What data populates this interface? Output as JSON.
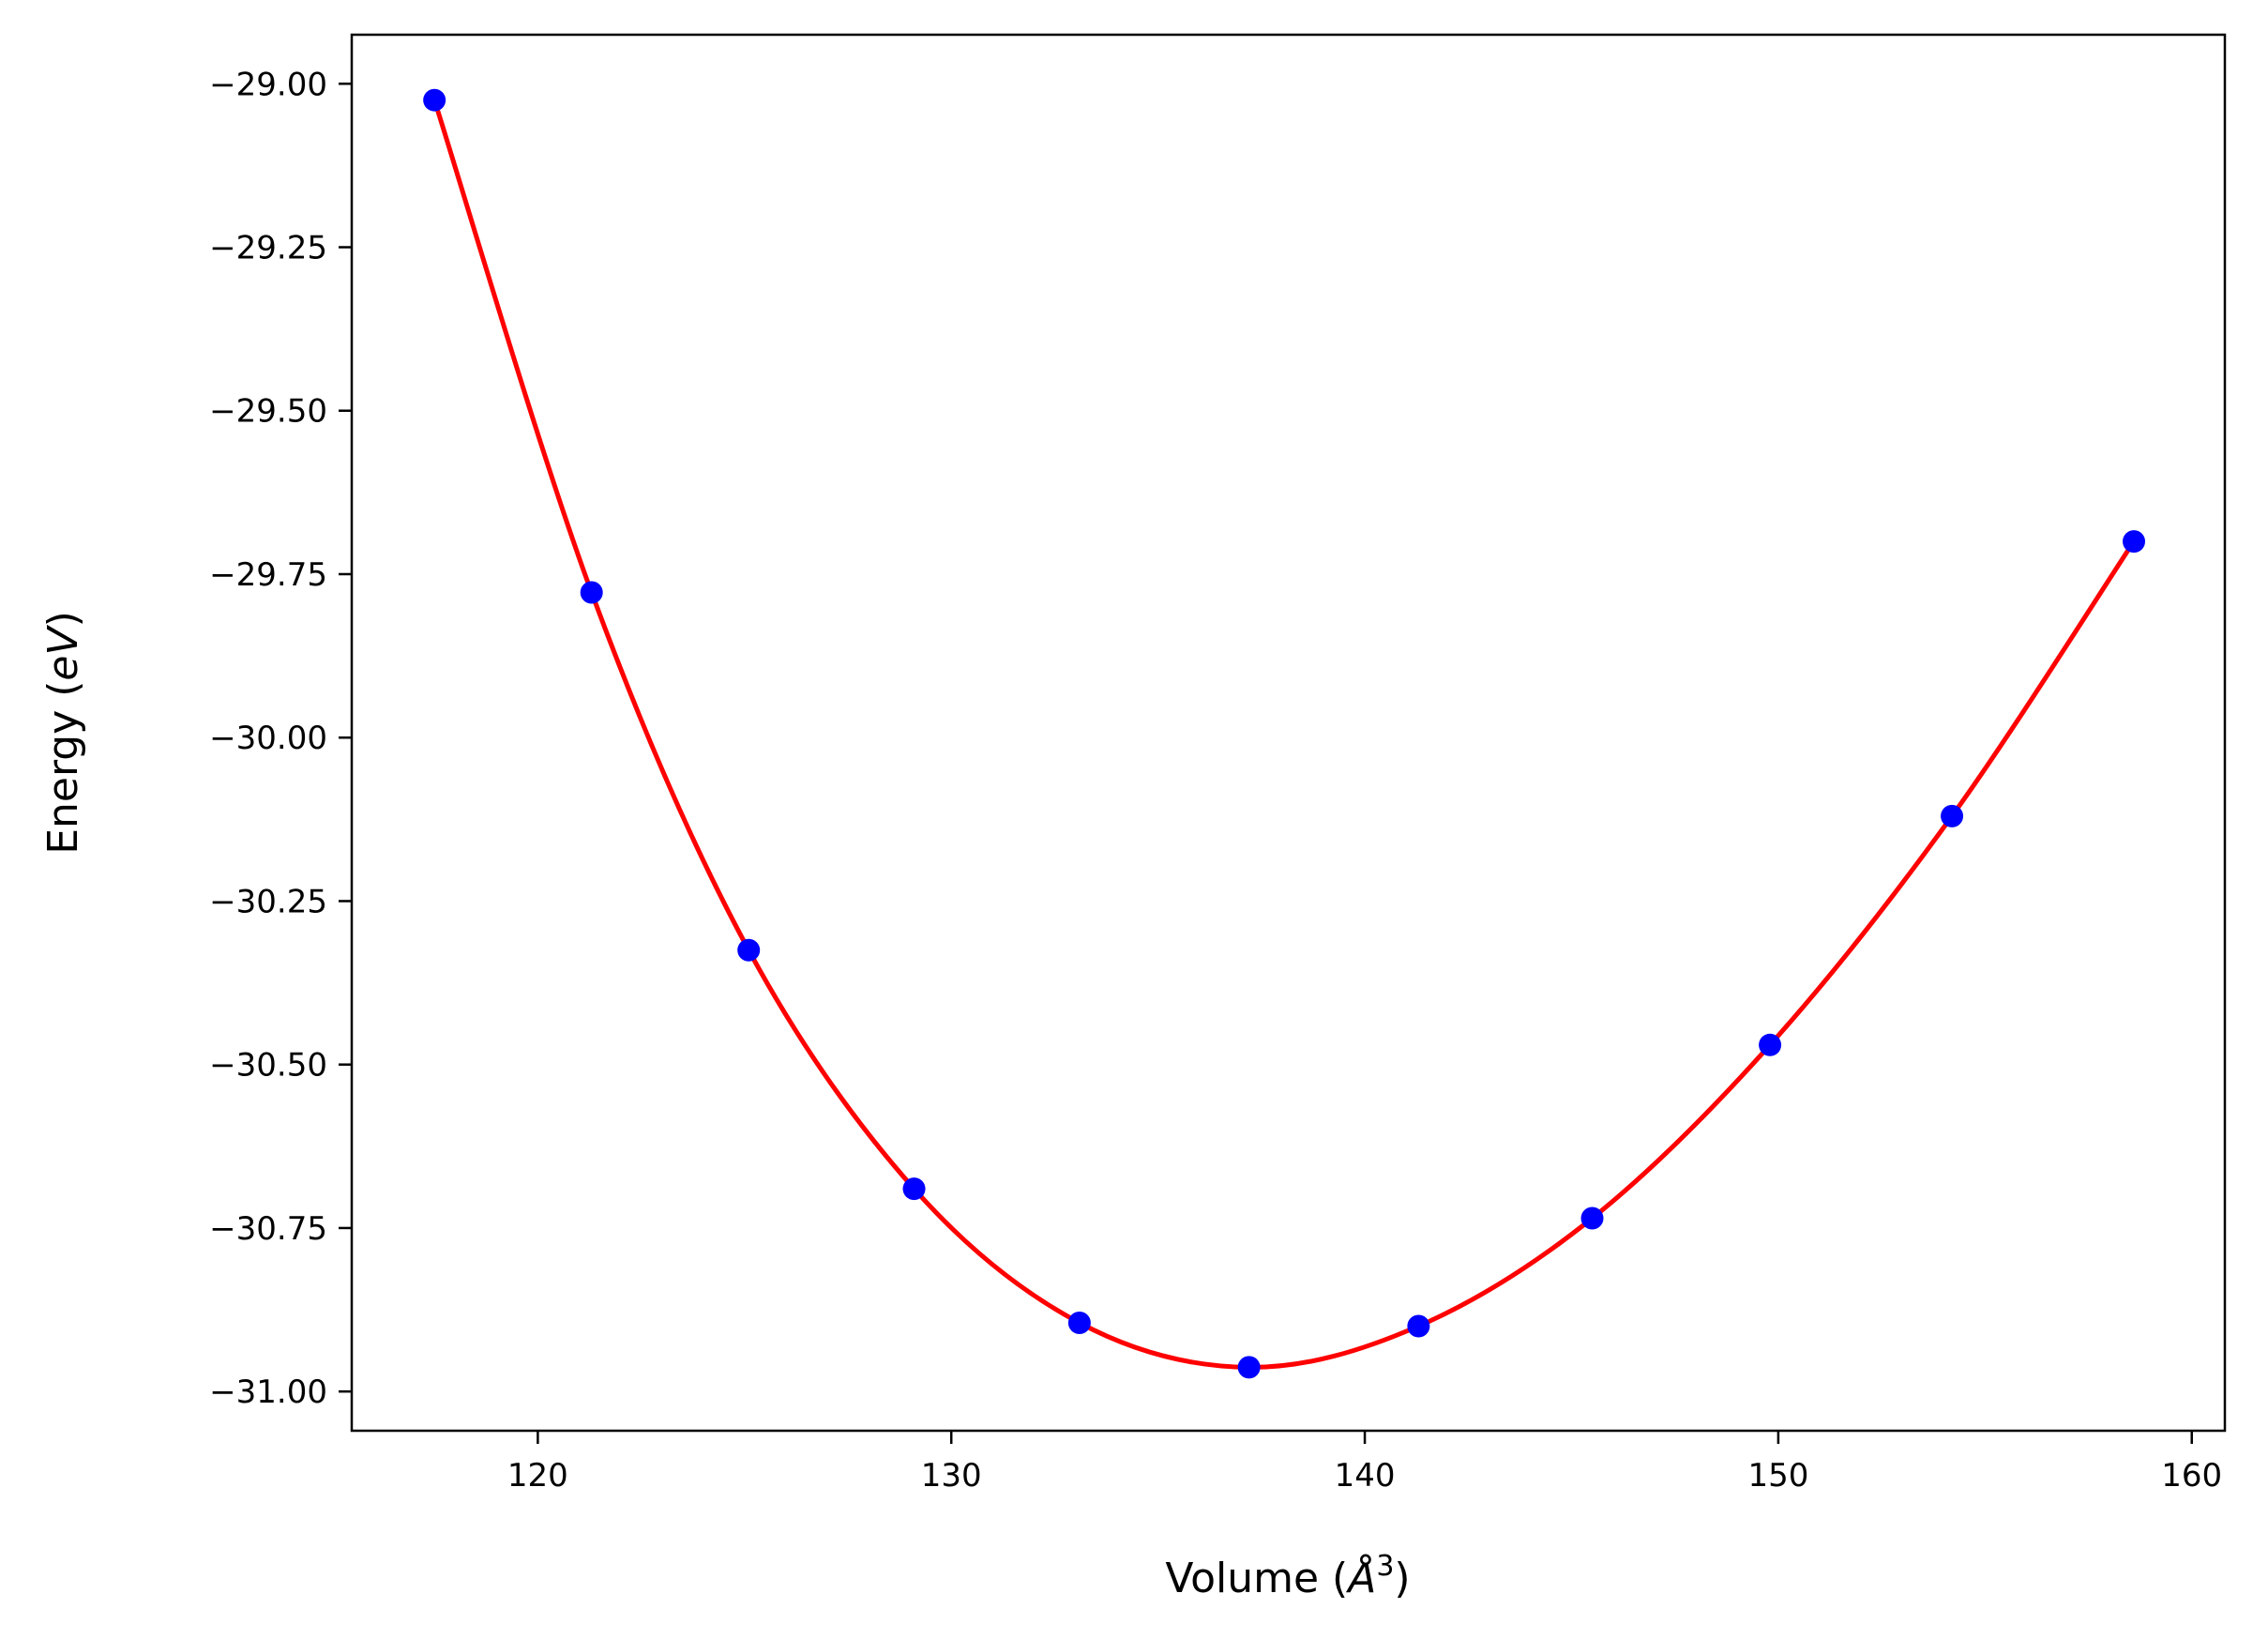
{
  "chart_data": {
    "type": "scatter",
    "xlabel": {
      "prefix": "Volume (",
      "symbol": "Å",
      "sup": "3",
      "suffix": ")"
    },
    "ylabel": {
      "prefix": "Energy (",
      "unit": "eV",
      "suffix": ")"
    },
    "xlim": [
      115.5,
      160.8
    ],
    "ylim": [
      -31.06,
      -28.925
    ],
    "x_ticks": [
      120,
      130,
      140,
      150,
      160
    ],
    "x_tick_labels": [
      "120",
      "130",
      "140",
      "150",
      "160"
    ],
    "y_ticks": [
      -29.0,
      -29.25,
      -29.5,
      -29.75,
      -30.0,
      -30.25,
      -30.5,
      -30.75,
      -31.0
    ],
    "y_tick_labels": [
      "−29.00",
      "−29.25",
      "−29.50",
      "−29.75",
      "−30.00",
      "−30.25",
      "−30.50",
      "−30.75",
      "−31.00"
    ],
    "grid": false,
    "series": [
      {
        "kind": "points",
        "color": "#0000ff",
        "x": [
          117.5,
          121.3,
          125.1,
          129.1,
          133.1,
          137.2,
          141.3,
          145.5,
          149.8,
          154.2,
          158.6
        ],
        "y": [
          -29.025,
          -29.778,
          -30.325,
          -30.69,
          -30.895,
          -30.963,
          -30.9,
          -30.735,
          -30.47,
          -30.12,
          -29.7
        ]
      },
      {
        "kind": "fit-curve",
        "color": "#ff0000",
        "x": [
          117.5,
          121.3,
          125.1,
          129.1,
          133.1,
          137.2,
          141.3,
          145.5,
          149.8,
          154.2,
          158.6
        ],
        "y": [
          -29.025,
          -29.778,
          -30.325,
          -30.69,
          -30.895,
          -30.963,
          -30.9,
          -30.735,
          -30.47,
          -30.12,
          -29.7
        ]
      }
    ]
  }
}
